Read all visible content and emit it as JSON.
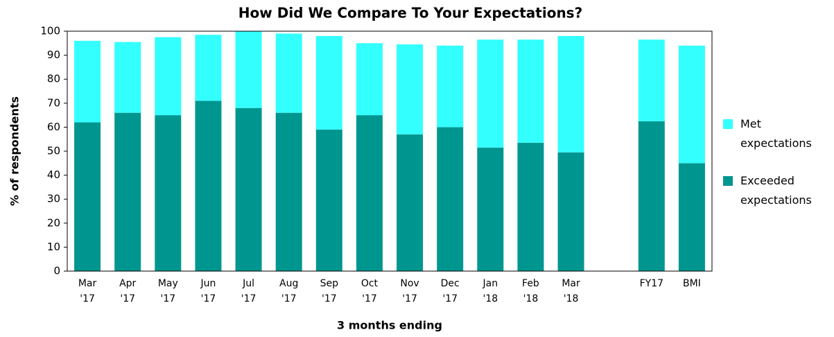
{
  "chart_data": {
    "type": "stacked_bar",
    "title": "How Did We Compare To Your Expectations?",
    "x_label": "3 months ending",
    "y_label": "% of respondents",
    "categories": [
      "Mar '17",
      "Apr '17",
      "May '17",
      "Jun '17",
      "Jul '17",
      "Aug '17",
      "Sep '17",
      "Oct '17",
      "Nov '17",
      "Dec '17",
      "Jan '18",
      "Feb '18",
      "Mar '18",
      null,
      "FY17",
      "BMI"
    ],
    "series": [
      {
        "name": "Exceeded expectations",
        "color": "#009690",
        "values": [
          62,
          66,
          65,
          71,
          68,
          66,
          59,
          65,
          57,
          60,
          51.5,
          53.5,
          49.5,
          null,
          62.5,
          45
        ]
      },
      {
        "name": "Met expectations",
        "color": "#33ffff",
        "values": [
          34,
          29.5,
          32.5,
          27.5,
          32,
          33,
          39,
          30,
          37.5,
          34,
          45,
          43,
          48.5,
          null,
          34,
          49
        ]
      }
    ],
    "ylim": [
      0,
      100
    ],
    "yticks": [
      0,
      10,
      20,
      30,
      40,
      50,
      60,
      70,
      80,
      90,
      100
    ],
    "grid": false,
    "legend": "right"
  }
}
